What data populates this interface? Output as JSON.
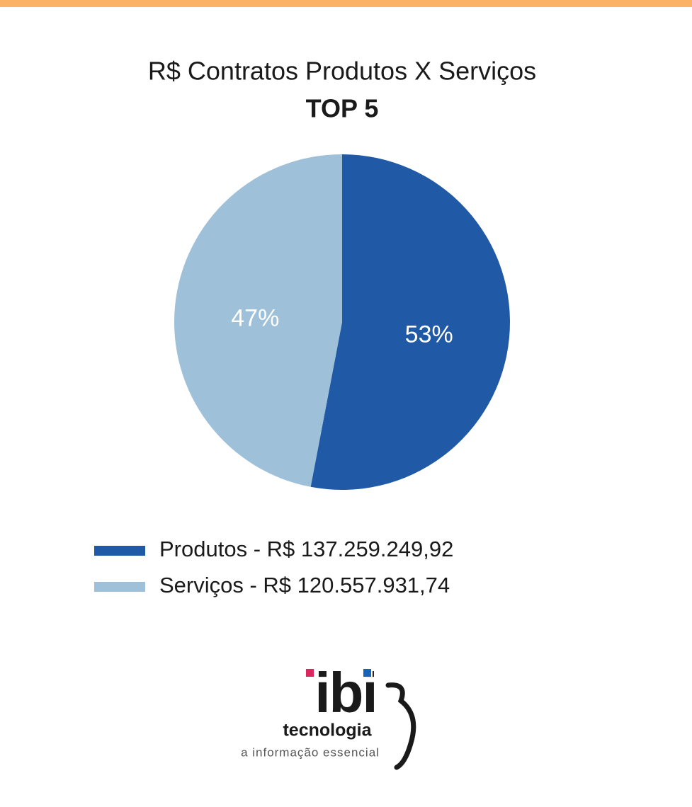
{
  "chart_data": {
    "type": "pie",
    "title": "R$ Contratos Produtos X Serviços",
    "subtitle": "TOP 5",
    "categories": [
      "Produtos - R$ 137.259.249,92",
      "Serviços - R$ 120.557.931,74"
    ],
    "values": [
      53,
      47
    ],
    "value_labels": [
      "53%",
      "47%"
    ],
    "colors": [
      "#2059a6",
      "#9ec0d8"
    ]
  },
  "logo": {
    "name": "ibi",
    "sub": "tecnologia",
    "tagline": "a informação essencial"
  }
}
